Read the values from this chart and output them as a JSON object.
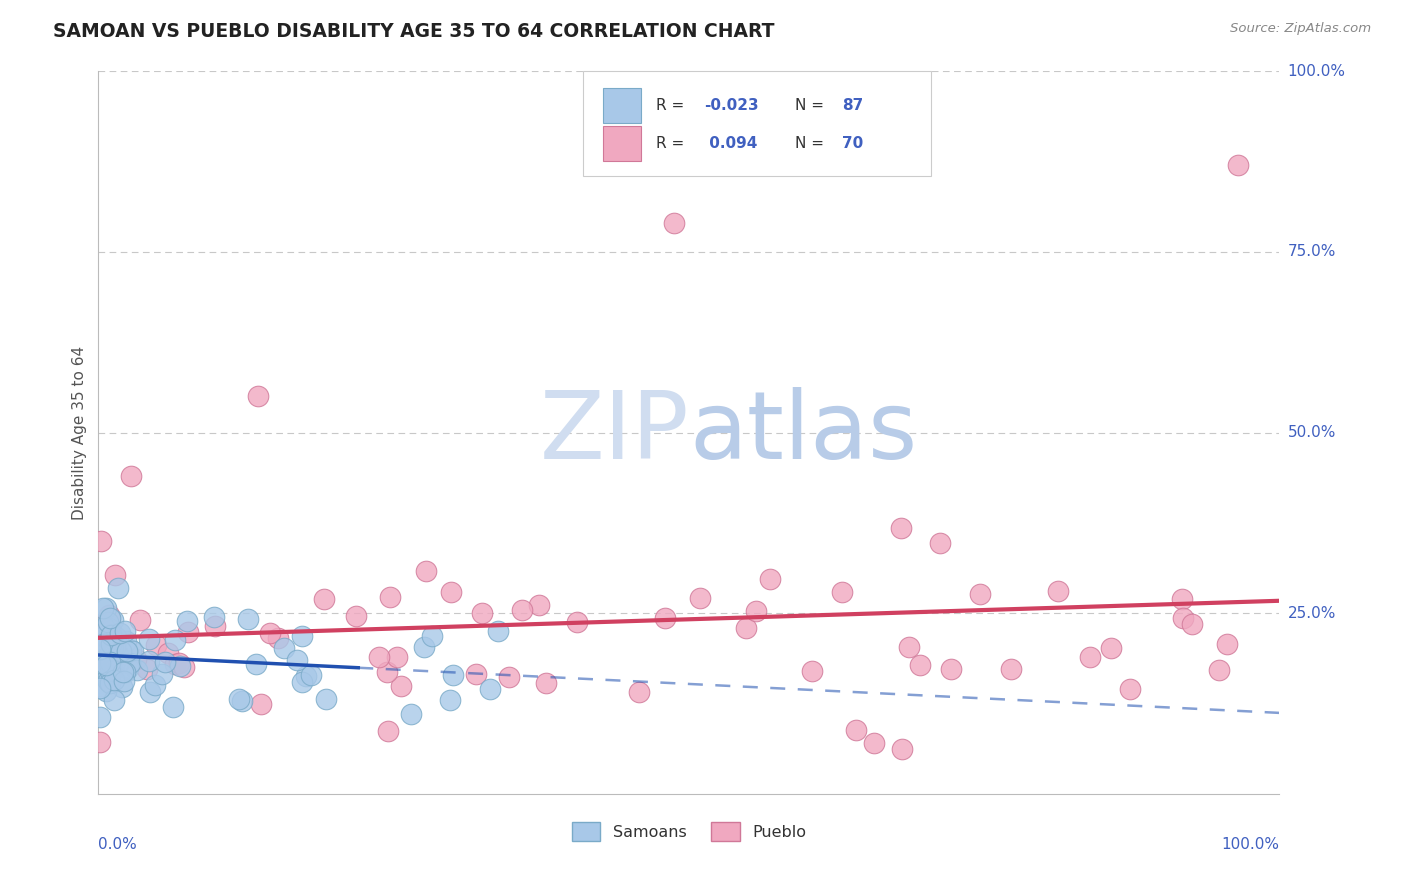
{
  "title": "SAMOAN VS PUEBLO DISABILITY AGE 35 TO 64 CORRELATION CHART",
  "source_text": "Source: ZipAtlas.com",
  "ylabel": "Disability Age 35 to 64",
  "samoans_R": -0.023,
  "samoans_N": 87,
  "pueblo_R": 0.094,
  "pueblo_N": 70,
  "samoans_color": "#a8c8e8",
  "samoans_edge": "#7aaac8",
  "pueblo_color": "#f0a8c0",
  "pueblo_edge": "#d07898",
  "trend_samoan_color": "#2050b0",
  "trend_pueblo_color": "#d04060",
  "watermark_color": "#d0ddf0",
  "background_color": "#ffffff",
  "grid_color": "#c8c8c8",
  "legend_text_color": "#4060c0",
  "legend_label_color": "#333333",
  "title_color": "#222222",
  "source_color": "#888888",
  "ylabel_color": "#555555",
  "axis_label_color": "#4060c0",
  "ytick_values": [
    0.25,
    0.5,
    0.75,
    1.0
  ],
  "ytick_labels": [
    "25.0%",
    "50.0%",
    "75.0%",
    "100.0%"
  ]
}
